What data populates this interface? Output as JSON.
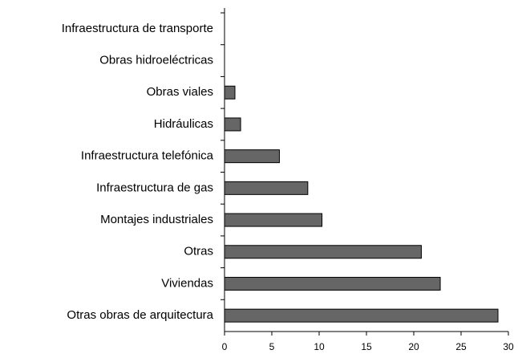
{
  "chart_data": {
    "type": "bar",
    "orientation": "horizontal",
    "categories": [
      "Infraestructura de transporte",
      "Obras hidroeléctricas",
      "Obras viales",
      "Hidráulicas",
      "Infraestructura telefónica",
      "Infraestructura de gas",
      "Montajes industriales",
      "Otras",
      "Viviendas",
      "Otras obras de arquitectura"
    ],
    "values": [
      0,
      0,
      1.1,
      1.7,
      5.8,
      8.8,
      10.3,
      20.8,
      22.8,
      28.9
    ],
    "color": "#666666",
    "xlim": [
      0,
      30
    ],
    "xticks": [
      0,
      5,
      10,
      15,
      20,
      25,
      30
    ],
    "grid": false
  }
}
